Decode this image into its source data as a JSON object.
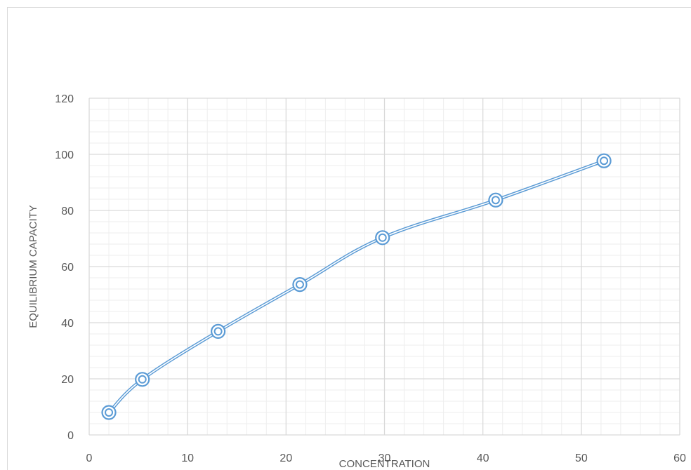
{
  "chart_data": {
    "type": "scatter",
    "title": "",
    "xlabel": "CONCENTRATION",
    "ylabel": "EQUILIBRIUM CAPACITY",
    "xlim": [
      0,
      60
    ],
    "ylim": [
      0,
      120
    ],
    "x_ticks": [
      "0",
      "10",
      "20",
      "30",
      "40",
      "50",
      "60"
    ],
    "y_ticks": [
      "0",
      "20",
      "40",
      "60",
      "80",
      "100",
      "120"
    ],
    "grid": true,
    "smooth_line": true,
    "series": [
      {
        "color": "#5b9bd5",
        "points": [
          {
            "x": 2.0,
            "y": 8.0
          },
          {
            "x": 5.4,
            "y": 19.8
          },
          {
            "x": 13.1,
            "y": 36.9
          },
          {
            "x": 21.4,
            "y": 53.6
          },
          {
            "x": 29.8,
            "y": 70.3
          },
          {
            "x": 41.3,
            "y": 83.7
          },
          {
            "x": 52.3,
            "y": 97.7
          }
        ]
      }
    ]
  }
}
